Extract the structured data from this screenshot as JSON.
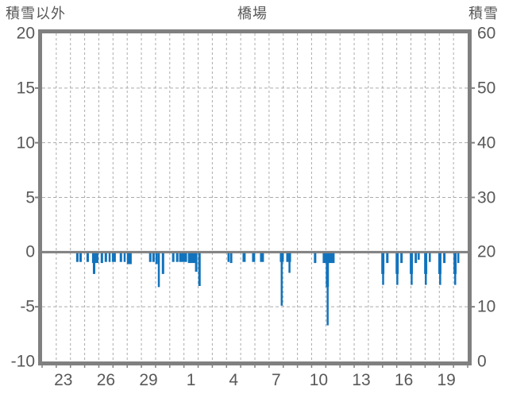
{
  "header": {
    "left_axis_title": "積雪以外",
    "chart_title": "橋場",
    "right_axis_title": "積雪"
  },
  "colors": {
    "bar": "#1273BC",
    "frame": "#808080",
    "zero_line": "#808080",
    "grid": "#ababab",
    "text": "#595959"
  },
  "chart_data": {
    "type": "bar",
    "title": "橋場",
    "legend": "none",
    "grid": true,
    "left_axis": {
      "label": "積雪以外",
      "ticks": [
        20,
        15,
        10,
        5,
        0,
        -5,
        -10
      ],
      "lim": [
        -10,
        20
      ]
    },
    "right_axis": {
      "label": "積雪",
      "ticks": [
        60,
        50,
        40,
        30,
        20,
        10,
        0
      ],
      "lim": [
        0,
        60
      ]
    },
    "x_axis": {
      "tick_labels": [
        "23",
        "26",
        "29",
        "1",
        "4",
        "7",
        "10",
        "13",
        "16",
        "19"
      ],
      "label_slots": [
        1,
        4,
        7,
        10,
        13,
        16,
        19,
        22,
        25,
        28
      ],
      "num_slots": 30,
      "description": "one slot per day, dashed gridline at every day boundary; days run 22 Dec through 20 Jan"
    },
    "bars_units": "x and w in day slots from left edge, v in left-axis units (negative = below zero line)",
    "bars": [
      {
        "x": 2.4,
        "w": 0.17,
        "v": -0.9
      },
      {
        "x": 2.63,
        "w": 0.17,
        "v": -0.9
      },
      {
        "x": 3.13,
        "w": 0.17,
        "v": -0.9
      },
      {
        "x": 3.52,
        "w": 0.45,
        "v": -1.0
      },
      {
        "x": 3.58,
        "w": 0.17,
        "v": -2.0
      },
      {
        "x": 4.13,
        "w": 0.17,
        "v": -1.0
      },
      {
        "x": 4.41,
        "w": 0.17,
        "v": -0.9
      },
      {
        "x": 4.69,
        "w": 0.12,
        "v": -0.9
      },
      {
        "x": 4.92,
        "w": 0.28,
        "v": -0.9
      },
      {
        "x": 5.47,
        "w": 0.17,
        "v": -0.9
      },
      {
        "x": 5.75,
        "w": 0.12,
        "v": -0.9
      },
      {
        "x": 5.98,
        "w": 0.34,
        "v": -1.1
      },
      {
        "x": 7.54,
        "w": 0.17,
        "v": -0.9
      },
      {
        "x": 7.77,
        "w": 0.17,
        "v": -0.9
      },
      {
        "x": 7.99,
        "w": 0.17,
        "v": -1.1
      },
      {
        "x": 8.16,
        "w": 0.12,
        "v": -3.2
      },
      {
        "x": 8.44,
        "w": 0.17,
        "v": -2.0
      },
      {
        "x": 9.16,
        "w": 0.17,
        "v": -0.9
      },
      {
        "x": 9.44,
        "w": 0.17,
        "v": -0.9
      },
      {
        "x": 9.66,
        "w": 0.56,
        "v": -0.9
      },
      {
        "x": 10.28,
        "w": 0.61,
        "v": -1.0
      },
      {
        "x": 10.78,
        "w": 0.17,
        "v": -1.8
      },
      {
        "x": 11.01,
        "w": 0.17,
        "v": -3.1
      },
      {
        "x": 13.07,
        "w": 0.12,
        "v": -0.9
      },
      {
        "x": 13.24,
        "w": 0.17,
        "v": -1.0
      },
      {
        "x": 14.13,
        "w": 0.22,
        "v": -0.9
      },
      {
        "x": 14.8,
        "w": 0.22,
        "v": -0.9
      },
      {
        "x": 15.36,
        "w": 0.28,
        "v": -0.9
      },
      {
        "x": 16.76,
        "w": 0.28,
        "v": -0.9
      },
      {
        "x": 16.82,
        "w": 0.12,
        "v": -4.9
      },
      {
        "x": 17.21,
        "w": 0.34,
        "v": -0.9
      },
      {
        "x": 17.37,
        "w": 0.12,
        "v": -1.9
      },
      {
        "x": 19.16,
        "w": 0.17,
        "v": -1.0
      },
      {
        "x": 19.78,
        "w": 0.84,
        "v": -1.0
      },
      {
        "x": 20.0,
        "w": 0.22,
        "v": -3.2
      },
      {
        "x": 20.06,
        "w": 0.11,
        "v": -6.7
      },
      {
        "x": 23.91,
        "w": 0.22,
        "v": -2.0
      },
      {
        "x": 23.97,
        "w": 0.11,
        "v": -3.0
      },
      {
        "x": 24.25,
        "w": 0.17,
        "v": -1.0
      },
      {
        "x": 24.92,
        "w": 0.22,
        "v": -2.0
      },
      {
        "x": 24.97,
        "w": 0.11,
        "v": -3.0
      },
      {
        "x": 25.25,
        "w": 0.17,
        "v": -1.0
      },
      {
        "x": 25.92,
        "w": 0.22,
        "v": -2.0
      },
      {
        "x": 25.98,
        "w": 0.11,
        "v": -3.0
      },
      {
        "x": 26.26,
        "w": 0.17,
        "v": -1.0
      },
      {
        "x": 26.48,
        "w": 0.11,
        "v": -0.7
      },
      {
        "x": 26.93,
        "w": 0.22,
        "v": -2.0
      },
      {
        "x": 26.98,
        "w": 0.11,
        "v": -3.0
      },
      {
        "x": 27.26,
        "w": 0.11,
        "v": -0.9
      },
      {
        "x": 27.93,
        "w": 0.22,
        "v": -2.0
      },
      {
        "x": 27.99,
        "w": 0.11,
        "v": -3.0
      },
      {
        "x": 28.27,
        "w": 0.17,
        "v": -1.0
      },
      {
        "x": 29.0,
        "w": 0.22,
        "v": -2.0
      },
      {
        "x": 29.05,
        "w": 0.11,
        "v": -3.0
      },
      {
        "x": 29.27,
        "w": 0.12,
        "v": -1.0
      }
    ]
  }
}
